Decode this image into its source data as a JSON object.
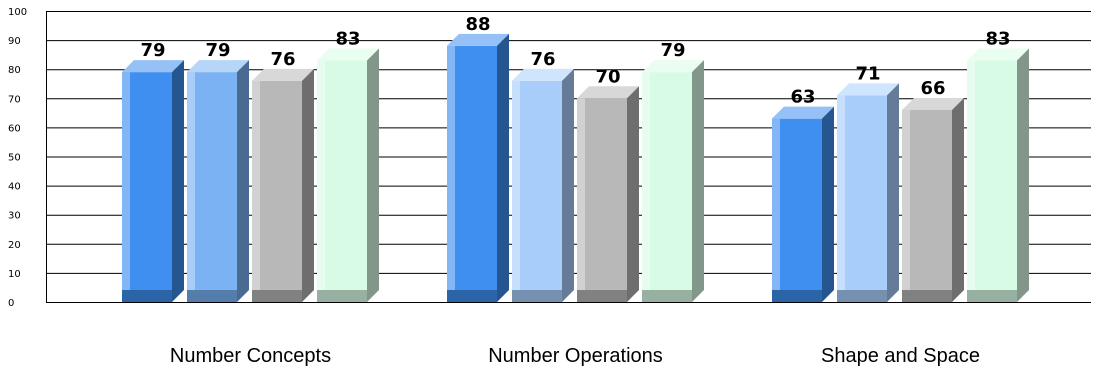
{
  "chart_data": {
    "type": "bar",
    "categories": [
      "Number Concepts",
      "Number Operations",
      "Shape and Space"
    ],
    "series": [
      {
        "values": [
          79,
          88,
          63
        ],
        "colors": [
          "#3f8ff0",
          "#3f8ff0",
          "#3f8ff0"
        ]
      },
      {
        "values": [
          79,
          76,
          71
        ],
        "colors": [
          "#7ab2f4",
          "#a8cdfb",
          "#a8cdfb"
        ]
      },
      {
        "values": [
          76,
          70,
          66
        ],
        "colors": [
          "#b8b8b8",
          "#b8b8b8",
          "#b8b8b8"
        ]
      },
      {
        "values": [
          83,
          79,
          83
        ],
        "colors": [
          "#d8fbe6",
          "#d8fbe6",
          "#d8fbe6"
        ]
      }
    ],
    "ylim": [
      0,
      100
    ],
    "yticks": [
      0,
      10,
      20,
      30,
      40,
      50,
      60,
      70,
      80,
      90,
      100
    ],
    "grid": true,
    "style": "3d"
  }
}
